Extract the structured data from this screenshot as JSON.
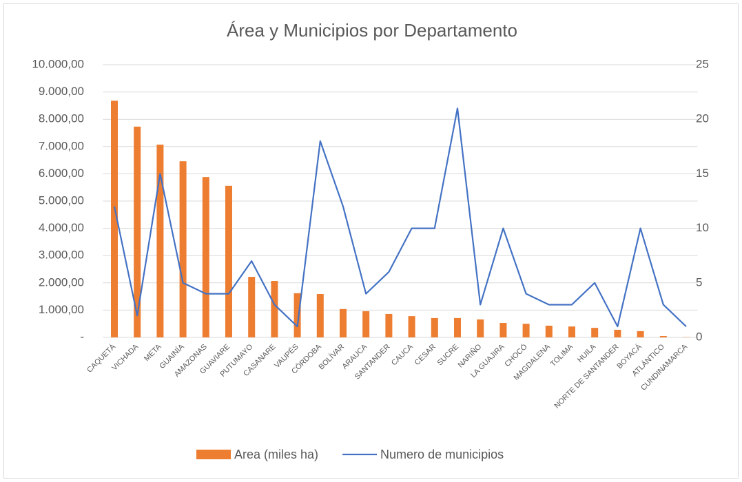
{
  "chart_data": {
    "type": "bar_line",
    "title": "Área y Municipios por Departamento",
    "categories": [
      "CAQUETÁ",
      "VICHADA",
      "META",
      "GUAINÍA",
      "AMAZONAS",
      "GUAVIARE",
      "PUTUMAYO",
      "CASANARE",
      "VAUPÉS",
      "CÓRDOBA",
      "BOLÍVAR",
      "ARAUCA",
      "SANTANDER",
      "CAUCA",
      "CESAR",
      "SUCRE",
      "NARIÑO",
      "LA GUAJIRA",
      "CHOCÓ",
      "MAGDALENA",
      "TOLIMA",
      "HUILA",
      "NORTE DE SANTANDER",
      "BOYACÁ",
      "ATLÁNTICO",
      "CUNDINAMARCA"
    ],
    "series": [
      {
        "name": "Area (miles ha)",
        "type": "bar",
        "color": "#ed7d31",
        "values": [
          8680,
          7730,
          7070,
          6460,
          5880,
          5560,
          2220,
          2070,
          1620,
          1590,
          1040,
          960,
          860,
          780,
          710,
          710,
          660,
          530,
          500,
          430,
          400,
          350,
          280,
          230,
          50,
          10
        ]
      },
      {
        "name": "Numero de municipios",
        "type": "line",
        "color": "#4472c4",
        "axis": "y2",
        "values": [
          12,
          2,
          15,
          5,
          4,
          4,
          7,
          3,
          1,
          18,
          12,
          4,
          6,
          10,
          10,
          21,
          3,
          10,
          4,
          3,
          3,
          5,
          1,
          10,
          3,
          1
        ]
      }
    ],
    "ylim": [
      0,
      10000
    ],
    "yticks": [
      {
        "value": 0,
        "label": "-"
      },
      {
        "value": 1000,
        "label": "1.000,00"
      },
      {
        "value": 2000,
        "label": "2.000,00"
      },
      {
        "value": 3000,
        "label": "3.000,00"
      },
      {
        "value": 4000,
        "label": "4.000,00"
      },
      {
        "value": 5000,
        "label": "5.000,00"
      },
      {
        "value": 6000,
        "label": "6.000,00"
      },
      {
        "value": 7000,
        "label": "7.000,00"
      },
      {
        "value": 8000,
        "label": "8.000,00"
      },
      {
        "value": 9000,
        "label": "9.000,00"
      },
      {
        "value": 10000,
        "label": "10.000,00"
      }
    ],
    "y2lim": [
      0,
      25
    ],
    "y2ticks": [
      0,
      5,
      10,
      15,
      20,
      25
    ],
    "grid": true,
    "legend": "bottom"
  }
}
